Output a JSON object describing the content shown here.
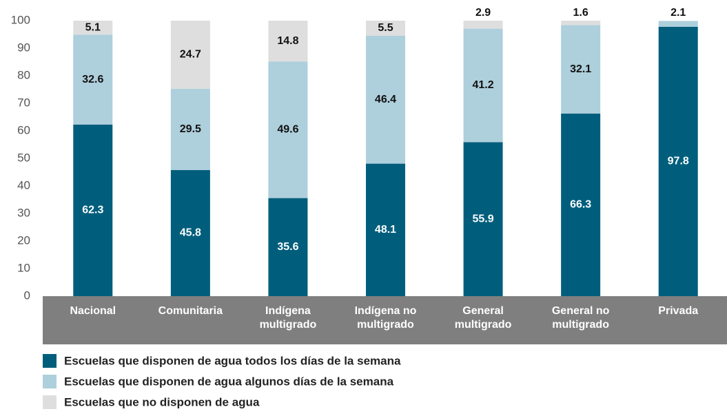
{
  "chart_data": {
    "type": "stacked_bar",
    "categories": [
      "Nacional",
      "Comunitaria",
      "Indígena multigrado",
      "Indígena no multigrado",
      "General multigrado",
      "General no multigrado",
      "Privada"
    ],
    "series": [
      {
        "name": "Escuelas que disponen de agua todos los días de la semana",
        "color": "#005e7c",
        "values": [
          62.3,
          45.8,
          35.6,
          48.1,
          55.9,
          66.3,
          97.8
        ]
      },
      {
        "name": "Escuelas que disponen de agua algunos días de la semana",
        "color": "#aecfdc",
        "values": [
          32.6,
          29.5,
          49.6,
          46.4,
          41.2,
          32.1,
          2.1
        ]
      },
      {
        "name": "Escuelas que no disponen de agua",
        "color": "#dedede",
        "values": [
          5.1,
          24.7,
          14.8,
          5.5,
          2.9,
          1.6,
          null
        ]
      }
    ],
    "ylim": [
      0,
      100
    ],
    "yticks": [
      0,
      10,
      20,
      30,
      40,
      50,
      60,
      70,
      80,
      90,
      100
    ],
    "grid": false
  }
}
